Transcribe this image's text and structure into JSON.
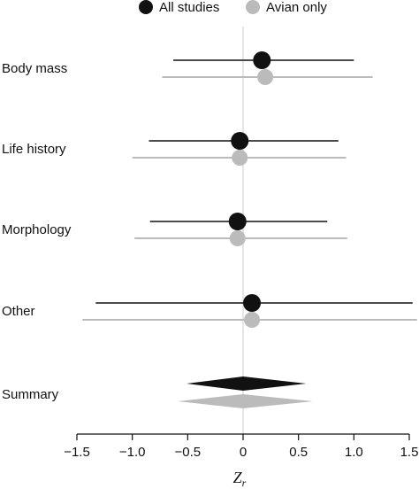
{
  "chart_data": {
    "type": "forest",
    "xlim": [
      -1.5,
      1.5
    ],
    "xticks": [
      -1.5,
      -1.0,
      -0.5,
      0,
      0.5,
      1.0,
      1.5
    ],
    "xtick_labels": [
      "−1.5",
      "−1.0",
      "−0.5",
      "0",
      "0.5",
      "1.0",
      "1.5"
    ],
    "xlabel_main": "Z",
    "xlabel_sub": "r",
    "reference_line": 0,
    "legend_position": "top",
    "colors": {
      "all": "#111111",
      "avian": "#bbbbbb",
      "reference": "#dddddd",
      "axis": "#111111"
    },
    "series": [
      {
        "name": "All studies",
        "color": "#111111"
      },
      {
        "name": "Avian only",
        "color": "#bbbbbb"
      }
    ],
    "categories": [
      {
        "label": "Body mass",
        "all": {
          "est": 0.17,
          "lo": -0.63,
          "hi": 1.0
        },
        "avian": {
          "est": 0.2,
          "lo": -0.73,
          "hi": 1.17
        }
      },
      {
        "label": "Life history",
        "all": {
          "est": -0.03,
          "lo": -0.85,
          "hi": 0.86
        },
        "avian": {
          "est": -0.03,
          "lo": -1.0,
          "hi": 0.93
        }
      },
      {
        "label": "Morphology",
        "all": {
          "est": -0.05,
          "lo": -0.84,
          "hi": 0.76
        },
        "avian": {
          "est": -0.05,
          "lo": -0.98,
          "hi": 0.94
        }
      },
      {
        "label": "Other",
        "all": {
          "est": 0.08,
          "lo": -1.33,
          "hi": 1.53
        },
        "avian": {
          "est": 0.08,
          "lo": -1.45,
          "hi": 1.57
        }
      }
    ],
    "summary": {
      "label": "Summary",
      "all": {
        "est": 0.0,
        "lo": -0.51,
        "hi": 0.57
      },
      "avian": {
        "est": 0.0,
        "lo": -0.59,
        "hi": 0.63
      }
    }
  }
}
